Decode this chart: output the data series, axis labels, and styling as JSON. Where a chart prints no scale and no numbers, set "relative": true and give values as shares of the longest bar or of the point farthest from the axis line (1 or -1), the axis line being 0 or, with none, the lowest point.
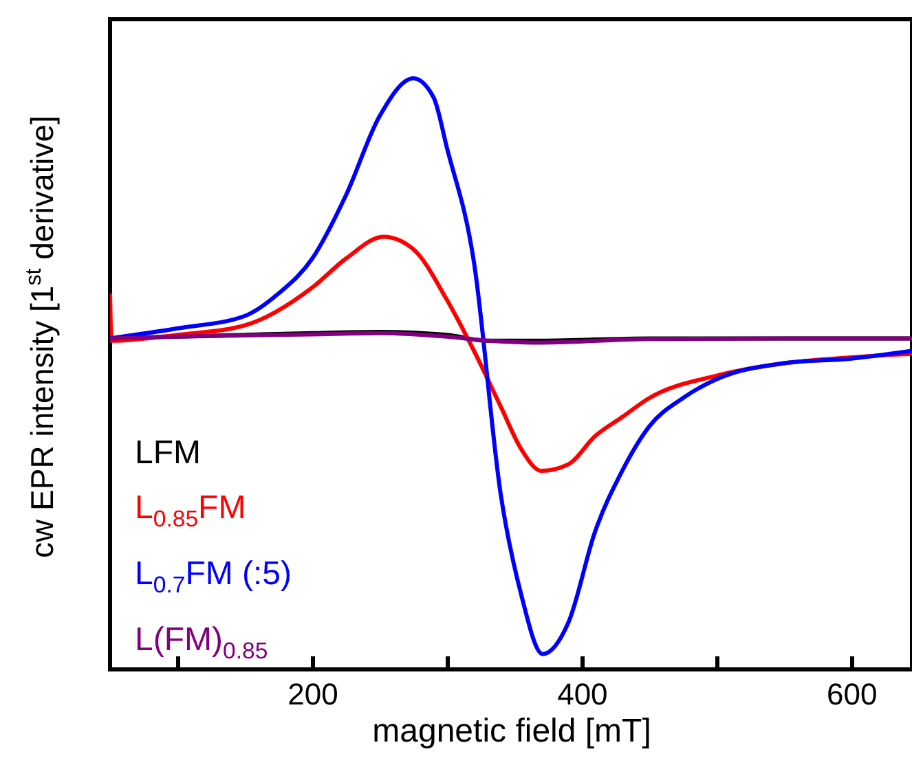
{
  "chart_data": {
    "type": "line",
    "relative": true,
    "xlabel": "magnetic field [mT]",
    "ylabel": "cw EPR intensity [1$^{st}$ derivative]",
    "xlim": [
      50,
      645
    ],
    "xticks": [
      {
        "value": 100,
        "label": null
      },
      200,
      {
        "value": 300,
        "label": null
      },
      400,
      {
        "value": 500,
        "label": null
      },
      600
    ],
    "legend": "bottom left",
    "line_style": "solid",
    "marker": "none",
    "grid": false,
    "series": [
      {
        "name": "LFM",
        "color": "#000000",
        "x": [
          50,
          100,
          150,
          200,
          250,
          300,
          330,
          370,
          450,
          550,
          645
        ],
        "values": [
          0.56,
          0.563,
          0.566,
          0.569,
          0.571,
          0.566,
          0.556,
          0.556,
          0.56,
          0.56,
          0.56
        ]
      },
      {
        "name": "L$_{0.85}$FM",
        "color": "#ff0000",
        "x": [
          50,
          51,
          100,
          150,
          200,
          225,
          253,
          275,
          300,
          320,
          340,
          355,
          370,
          390,
          410,
          430,
          450,
          500,
          550,
          600,
          645
        ],
        "values": [
          0.636,
          0.556,
          0.566,
          0.582,
          0.646,
          0.695,
          0.732,
          0.711,
          0.625,
          0.539,
          0.444,
          0.373,
          0.336,
          0.347,
          0.395,
          0.427,
          0.459,
          0.497,
          0.518,
          0.528,
          0.534
        ]
      },
      {
        "name": "L$_{0.7}$FM (:5)",
        "color": "#0000ff",
        "x": [
          50,
          100,
          150,
          175,
          200,
          225,
          250,
          275,
          290,
          300,
          320,
          340,
          355,
          371,
          390,
          410,
          430,
          450,
          475,
          500,
          550,
          600,
          645
        ],
        "values": [
          0.56,
          0.577,
          0.598,
          0.636,
          0.695,
          0.802,
          0.936,
          1,
          0.968,
          0.882,
          0.689,
          0.294,
          0.127,
          0.026,
          0.079,
          0.234,
          0.336,
          0.411,
          0.459,
          0.491,
          0.518,
          0.526,
          0.539
        ]
      },
      {
        "name": "L(FM)$_{0.85}$",
        "color": "#800080",
        "x": [
          50,
          100,
          150,
          200,
          250,
          300,
          330,
          370,
          450,
          550,
          645
        ],
        "values": [
          0.56,
          0.563,
          0.565,
          0.567,
          0.569,
          0.563,
          0.556,
          0.553,
          0.559,
          0.56,
          0.56
        ]
      }
    ]
  }
}
